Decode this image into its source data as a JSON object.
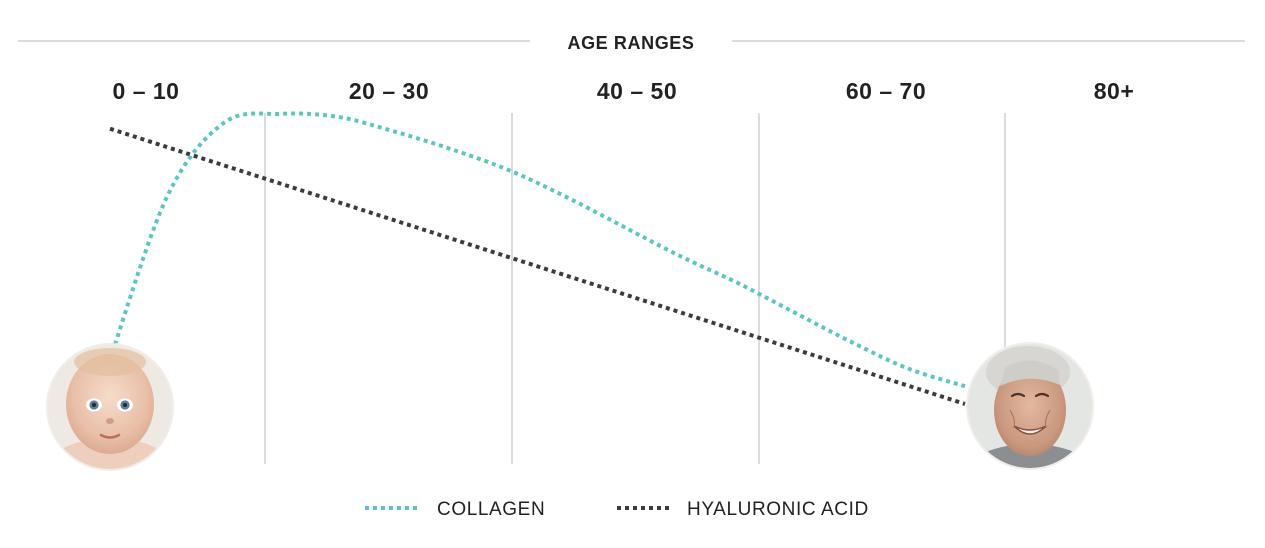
{
  "chart_data": {
    "type": "line",
    "header": "AGE RANGES",
    "categories": [
      "0 – 10",
      "20 – 30",
      "40 – 50",
      "60 – 70",
      "80+"
    ],
    "series": [
      {
        "name": "COLLAGEN",
        "color": "#5fc4c6",
        "points": [
          [
            0,
            15
          ],
          [
            1,
            70
          ],
          [
            2,
            95
          ],
          [
            3,
            98
          ],
          [
            4,
            97
          ],
          [
            5,
            92
          ],
          [
            6,
            86
          ],
          [
            7,
            79
          ],
          [
            8,
            70
          ],
          [
            9,
            60
          ],
          [
            10,
            50
          ],
          [
            11,
            41
          ],
          [
            12,
            31
          ],
          [
            13,
            21
          ],
          [
            14,
            12
          ],
          [
            15,
            6
          ]
        ]
      },
      {
        "name": "HYALURONIC ACID",
        "color": "#3c3c3c",
        "points": [
          [
            0,
            93
          ],
          [
            15,
            0
          ]
        ]
      }
    ],
    "grid": "vertical separators between age ranges",
    "legend_position": "bottom-center",
    "icons": [
      "baby-portrait",
      "elderly-portrait"
    ]
  }
}
